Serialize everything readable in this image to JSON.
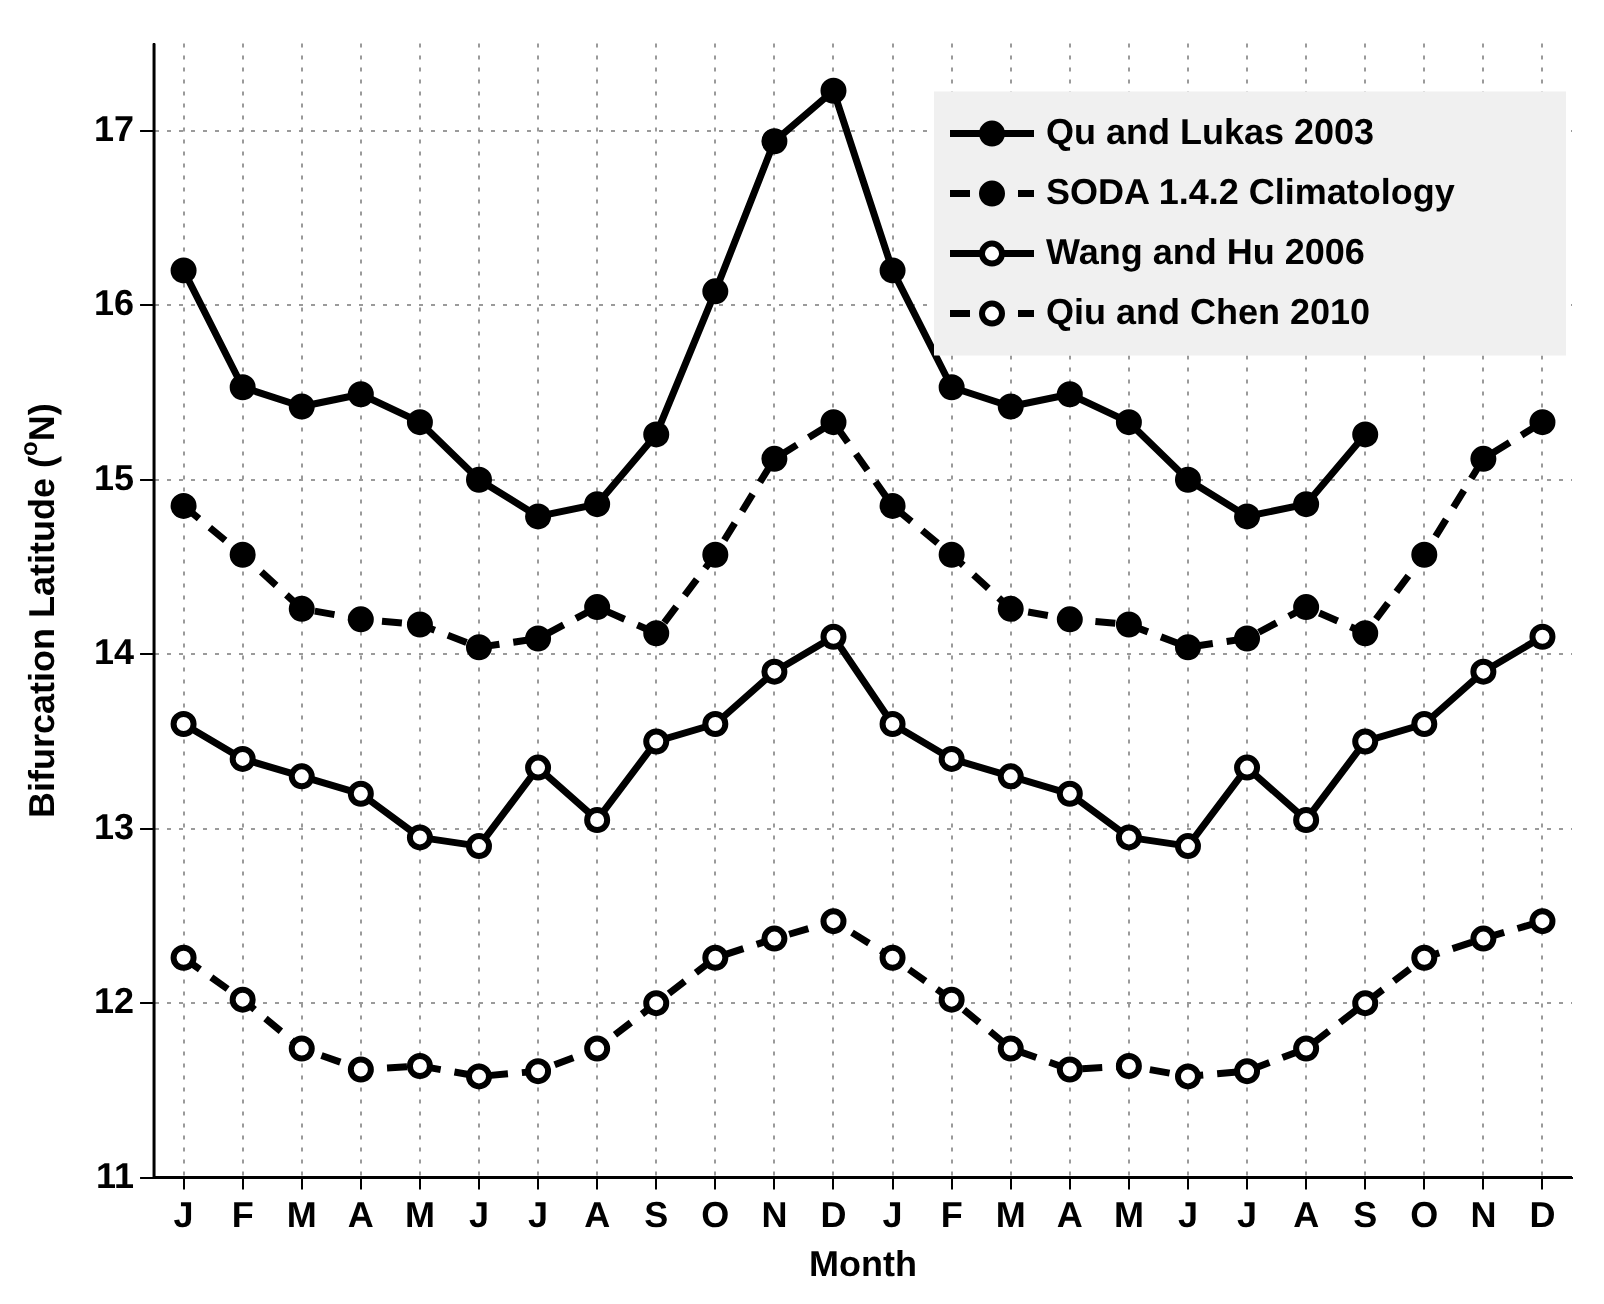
{
  "chart_data": {
    "type": "line",
    "xlabel": "Month",
    "ylabel": "Bifurcation Latitude ($^{o}$N)",
    "categories": [
      "J",
      "F",
      "M",
      "A",
      "M",
      "J",
      "J",
      "A",
      "S",
      "O",
      "N",
      "D",
      "J",
      "F",
      "M",
      "A",
      "M",
      "J",
      "J",
      "A",
      "S",
      "O",
      "N",
      "D"
    ],
    "ylim": [
      11,
      17.5
    ],
    "yticks": [
      11,
      12,
      13,
      14,
      15,
      16,
      17
    ],
    "grid": true,
    "legend": "top right",
    "marker": "circle",
    "series": [
      {
        "name": "Qu and Lukas 2003",
        "color": "#000000",
        "line_style": "solid",
        "values": [
          16.2,
          15.53,
          15.42,
          15.49,
          15.33,
          15.0,
          14.79,
          14.86,
          15.26,
          16.08,
          16.94,
          17.23,
          16.2,
          15.53,
          15.42,
          15.49,
          15.33,
          15.0,
          14.79,
          14.86,
          15.26,
          null,
          null,
          null
        ]
      },
      {
        "name": "SODA 1.4.2 Climatology",
        "color": "#000000",
        "line_style": "dashed",
        "values": [
          14.85,
          14.57,
          14.26,
          14.2,
          14.17,
          14.04,
          14.09,
          14.27,
          14.12,
          14.57,
          15.12,
          15.33,
          14.85,
          14.57,
          14.26,
          14.2,
          14.17,
          14.04,
          14.09,
          14.27,
          14.12,
          14.57,
          15.12,
          15.33
        ]
      },
      {
        "name": "Wang and Hu 2006",
        "color": "#000000",
        "line_style": "solid",
        "values": [
          13.6,
          13.4,
          13.3,
          13.2,
          12.95,
          12.9,
          13.35,
          13.05,
          13.5,
          13.6,
          13.9,
          14.1,
          13.6,
          13.4,
          13.3,
          13.2,
          12.95,
          12.9,
          13.35,
          13.05,
          13.5,
          13.6,
          13.9,
          14.1
        ]
      },
      {
        "name": "Qiu and Chen 2010",
        "color": "#000000",
        "line_style": "dashed",
        "values": [
          12.26,
          12.02,
          11.74,
          11.62,
          11.64,
          11.58,
          11.61,
          11.74,
          12.0,
          12.26,
          12.37,
          12.47,
          12.26,
          12.02,
          11.74,
          11.62,
          11.64,
          11.58,
          11.61,
          11.74,
          12.0,
          12.26,
          12.37,
          12.47
        ]
      }
    ]
  }
}
